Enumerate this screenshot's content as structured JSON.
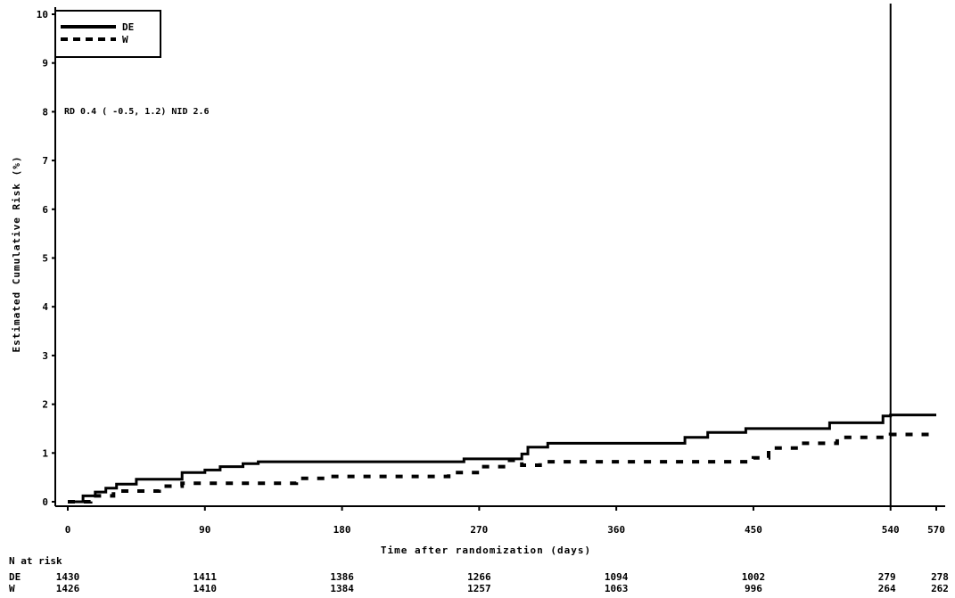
{
  "chart_data": {
    "type": "line",
    "ylabel": "Estimated Cumulative Risk (%)",
    "xlabel": "Time after randomization (days)",
    "xlim": [
      0,
      570
    ],
    "ylim": [
      0,
      10
    ],
    "x_ticks": [
      0,
      90,
      180,
      270,
      360,
      450,
      540,
      570
    ],
    "y_ticks": [
      0,
      1,
      2,
      3,
      4,
      5,
      6,
      7,
      8,
      9,
      10
    ],
    "grid": false,
    "legend": "top-left",
    "annotation": "RD 0.4 ( -0.5, 1.2) NID 2.6",
    "reference_line_x": 540,
    "series": [
      {
        "name": "DE",
        "style": "solid",
        "points": [
          [
            0,
            0
          ],
          [
            10,
            0
          ],
          [
            10,
            0.12
          ],
          [
            18,
            0.12
          ],
          [
            18,
            0.2
          ],
          [
            25,
            0.2
          ],
          [
            25,
            0.28
          ],
          [
            32,
            0.28
          ],
          [
            32,
            0.36
          ],
          [
            45,
            0.36
          ],
          [
            45,
            0.46
          ],
          [
            75,
            0.46
          ],
          [
            75,
            0.6
          ],
          [
            90,
            0.6
          ],
          [
            90,
            0.65
          ],
          [
            100,
            0.65
          ],
          [
            100,
            0.72
          ],
          [
            115,
            0.72
          ],
          [
            115,
            0.78
          ],
          [
            125,
            0.78
          ],
          [
            125,
            0.82
          ],
          [
            260,
            0.82
          ],
          [
            260,
            0.88
          ],
          [
            298,
            0.88
          ],
          [
            298,
            0.98
          ],
          [
            302,
            0.98
          ],
          [
            302,
            1.12
          ],
          [
            315,
            1.12
          ],
          [
            315,
            1.2
          ],
          [
            405,
            1.2
          ],
          [
            405,
            1.32
          ],
          [
            420,
            1.32
          ],
          [
            420,
            1.42
          ],
          [
            445,
            1.42
          ],
          [
            445,
            1.5
          ],
          [
            500,
            1.5
          ],
          [
            500,
            1.62
          ],
          [
            535,
            1.62
          ],
          [
            535,
            1.76
          ],
          [
            540,
            1.76
          ],
          [
            540,
            1.78
          ],
          [
            570,
            1.78
          ]
        ]
      },
      {
        "name": "W",
        "style": "dashed",
        "points": [
          [
            0,
            0
          ],
          [
            15,
            0
          ],
          [
            15,
            0.12
          ],
          [
            30,
            0.12
          ],
          [
            30,
            0.22
          ],
          [
            60,
            0.22
          ],
          [
            60,
            0.32
          ],
          [
            75,
            0.32
          ],
          [
            75,
            0.38
          ],
          [
            150,
            0.38
          ],
          [
            150,
            0.48
          ],
          [
            170,
            0.48
          ],
          [
            170,
            0.52
          ],
          [
            250,
            0.52
          ],
          [
            250,
            0.6
          ],
          [
            270,
            0.6
          ],
          [
            270,
            0.72
          ],
          [
            290,
            0.72
          ],
          [
            290,
            0.85
          ],
          [
            298,
            0.85
          ],
          [
            298,
            0.75
          ],
          [
            310,
            0.75
          ],
          [
            310,
            0.82
          ],
          [
            450,
            0.82
          ],
          [
            450,
            0.9
          ],
          [
            460,
            0.9
          ],
          [
            460,
            1.1
          ],
          [
            480,
            1.1
          ],
          [
            480,
            1.2
          ],
          [
            505,
            1.2
          ],
          [
            505,
            1.32
          ],
          [
            540,
            1.32
          ],
          [
            540,
            1.38
          ],
          [
            570,
            1.38
          ]
        ]
      }
    ],
    "risk_table": {
      "title": "N at risk",
      "times": [
        0,
        90,
        180,
        270,
        360,
        450,
        540,
        570
      ],
      "rows": [
        {
          "name": "DE",
          "values": [
            "1430",
            "1411",
            "1386",
            "1266",
            "1094",
            "1002",
            "279",
            "278"
          ]
        },
        {
          "name": "W",
          "values": [
            "1426",
            "1410",
            "1384",
            "1257",
            "1063",
            "996",
            "264",
            "262"
          ]
        }
      ]
    },
    "colors": {
      "line": "#000000",
      "background": "#ffffff"
    }
  }
}
